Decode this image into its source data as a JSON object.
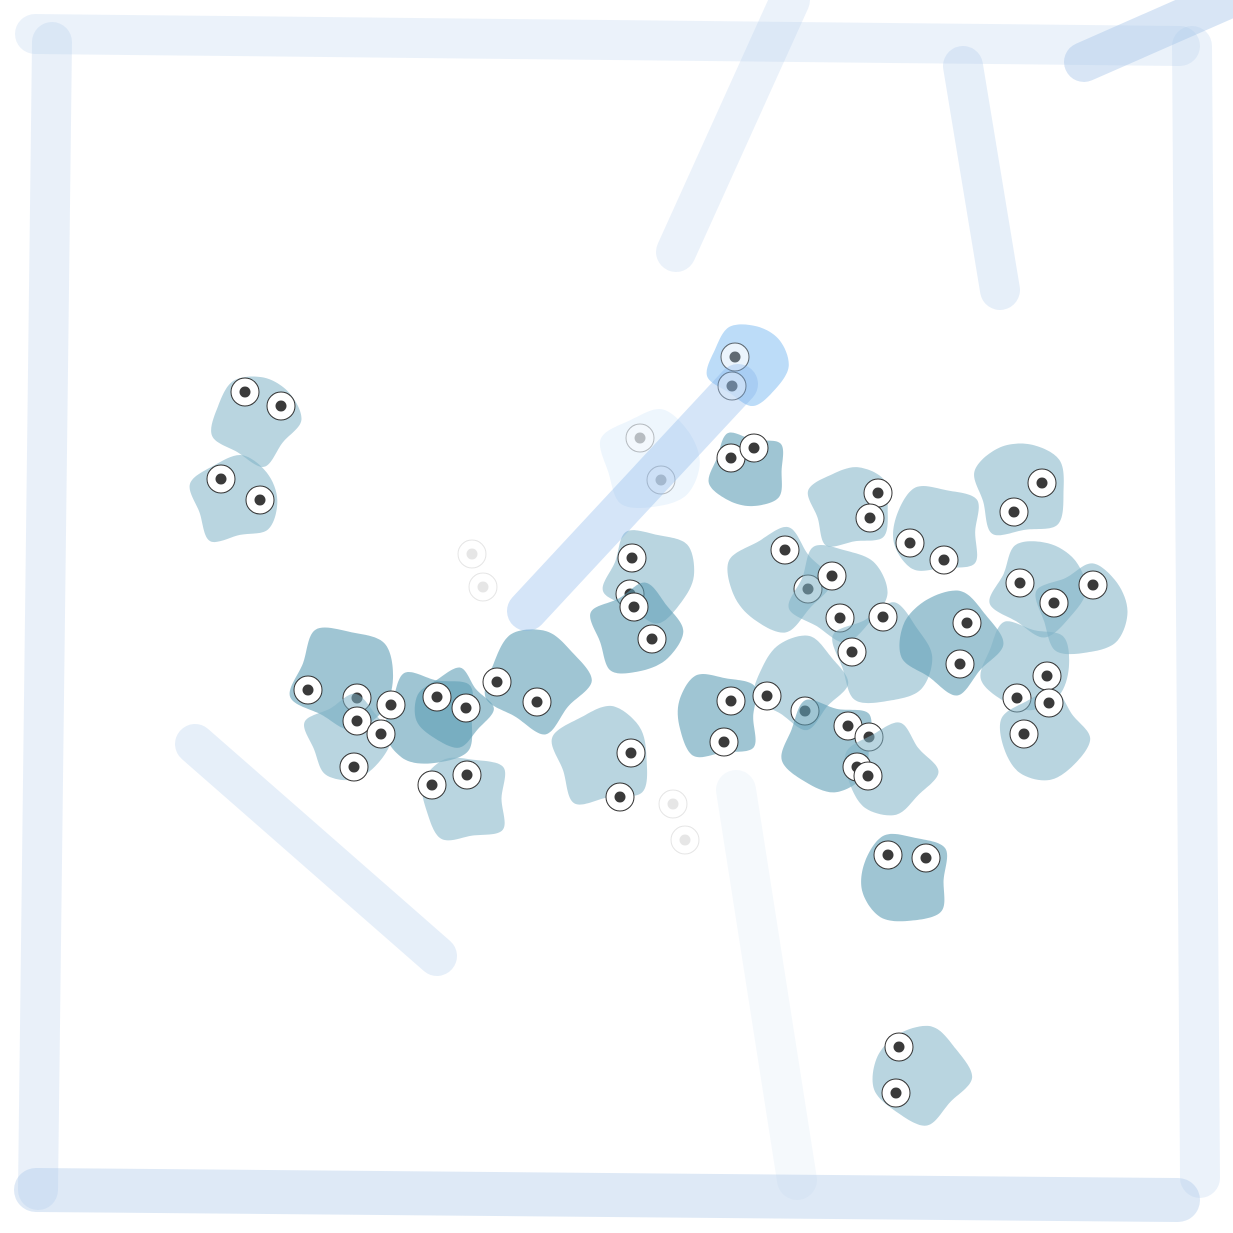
{
  "game": {
    "colors": {
      "background": "#ffffff",
      "wall": "#a9c7ea",
      "wall_active": "#7fb0ea",
      "creature": "#7fb3c6",
      "creature_deep": "#5f9fb6",
      "creature_selected": "#8fc4f3",
      "eye_white": "#ffffff",
      "eye_outline": "#333333",
      "pupil": "#3a3a3a"
    },
    "walls": [
      {
        "name": "wall-top"
      },
      {
        "name": "wall-left"
      },
      {
        "name": "wall-bottom"
      },
      {
        "name": "wall-right"
      },
      {
        "name": "wall-top-right-corner"
      },
      {
        "name": "wall-diagonal-top"
      },
      {
        "name": "wall-upper-right-slant"
      },
      {
        "name": "wall-lower-left-diagonal"
      },
      {
        "name": "wall-lower-center-slant"
      },
      {
        "name": "wall-active-drag"
      }
    ],
    "creatures": [
      {
        "name": "creature-1"
      },
      {
        "name": "creature-2"
      },
      {
        "name": "creature-3"
      },
      {
        "name": "creature-4"
      },
      {
        "name": "creature-5"
      },
      {
        "name": "creature-6"
      },
      {
        "name": "creature-7"
      },
      {
        "name": "creature-8"
      },
      {
        "name": "creature-9"
      },
      {
        "name": "creature-10"
      },
      {
        "name": "creature-11"
      },
      {
        "name": "creature-12"
      },
      {
        "name": "creature-13"
      },
      {
        "name": "creature-14"
      },
      {
        "name": "creature-15"
      },
      {
        "name": "creature-16"
      },
      {
        "name": "creature-17"
      },
      {
        "name": "creature-18"
      },
      {
        "name": "creature-19"
      },
      {
        "name": "creature-20"
      },
      {
        "name": "creature-21"
      },
      {
        "name": "creature-22"
      },
      {
        "name": "creature-23"
      },
      {
        "name": "creature-24"
      },
      {
        "name": "creature-25"
      },
      {
        "name": "creature-26"
      },
      {
        "name": "creature-27"
      },
      {
        "name": "creature-28"
      },
      {
        "name": "creature-29"
      },
      {
        "name": "creature-30"
      },
      {
        "name": "creature-31"
      },
      {
        "name": "creature-32"
      }
    ],
    "ghost_creatures": [
      {
        "name": "ghost-creature-1"
      },
      {
        "name": "ghost-creature-2"
      },
      {
        "name": "ghost-creature-3"
      }
    ]
  }
}
